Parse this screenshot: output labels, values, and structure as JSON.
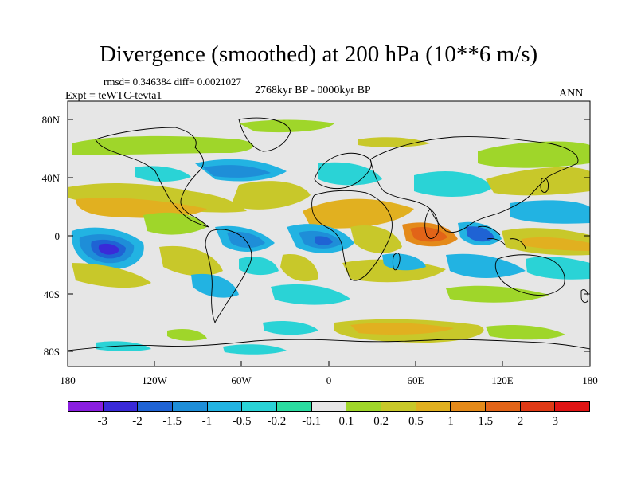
{
  "title": "Divergence (smoothed) at 200 hPa (10**6 m/s)",
  "stats": "rmsd= 0.346384 diff= 0.0021027",
  "period": "2768kyr BP - 0000kyr BP",
  "experiment": "Expt = teWTC-tevta1",
  "season": "ANN",
  "axes": {
    "lat_labels": [
      "80N",
      "40N",
      "0",
      "40S",
      "80S"
    ],
    "lon_labels": [
      "180",
      "120W",
      "60W",
      "0",
      "60E",
      "120E",
      "180"
    ]
  },
  "colorbar": {
    "labels": [
      "-3",
      "-2",
      "-1.5",
      "-1",
      "-0.5",
      "-0.2",
      "-0.1",
      "0.1",
      "0.2",
      "0.5",
      "1",
      "1.5",
      "2",
      "3"
    ],
    "colors": [
      "#8a1ee0",
      "#3a2ad8",
      "#1f63d4",
      "#1e8ed8",
      "#22b3e2",
      "#2ad3d6",
      "#2bdca0",
      "#e6e6e6",
      "#9fd62a",
      "#c8c82a",
      "#e1b020",
      "#e48a1a",
      "#e26418",
      "#e03a16",
      "#e01414"
    ]
  },
  "palette": {
    "background": "#e6e6e6",
    "coast": "#000000"
  }
}
